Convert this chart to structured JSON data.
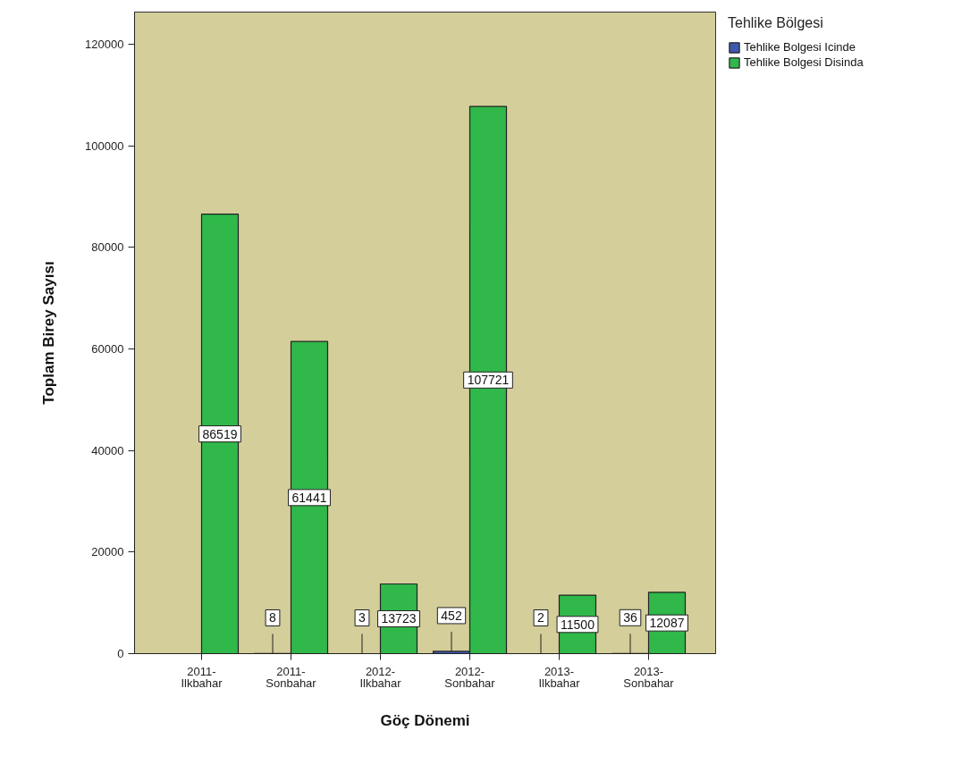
{
  "chart_data": {
    "type": "bar",
    "categories": [
      "2011- Ilkbahar",
      "2011- Sonbahar",
      "2012- Ilkbahar",
      "2012- Sonbahar",
      "2013- Ilkbahar",
      "2013- Sonbahar"
    ],
    "xlabel": "Göç Dönemi",
    "ylabel": "Toplam Birey Sayısı",
    "legend_title": "Tehlike Bölgesi",
    "series": [
      {
        "name": "Tehlike Bolgesi Icinde",
        "color": "#3e58ac",
        "values": [
          null,
          8,
          3,
          452,
          2,
          36
        ]
      },
      {
        "name": "Tehlike Bolgesi Disinda",
        "color": "#30b84a",
        "values": [
          86519,
          61441,
          13723,
          107721,
          11500,
          12087
        ]
      }
    ],
    "ylim": [
      0,
      126300
    ],
    "yticks": [
      0,
      20000,
      40000,
      60000,
      80000,
      100000,
      120000
    ],
    "data_labels": true,
    "grid": false,
    "legend": "top right"
  }
}
